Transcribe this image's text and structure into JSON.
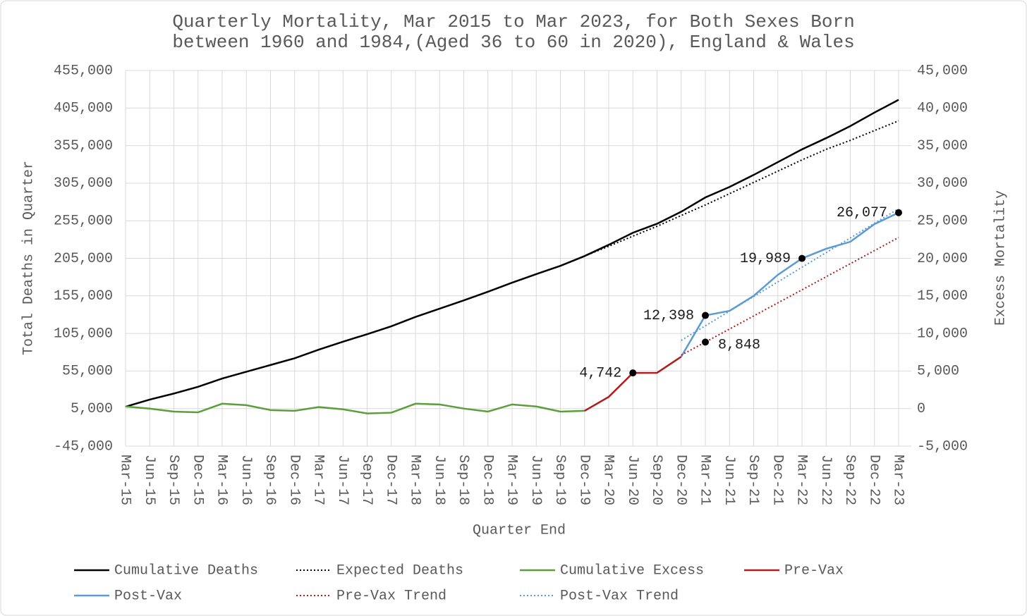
{
  "chart_data": {
    "type": "line",
    "title": [
      "Quarterly Mortality, Mar 2015 to Mar 2023, for Both Sexes Born",
      "between 1960 and 1984,(Aged 36 to 60 in 2020), England & Wales"
    ],
    "xlabel": "Quarter End",
    "ylabel": "Total Deaths in Quarter",
    "y2label": "Excess Mortality",
    "categories": [
      "Mar-15",
      "Jun-15",
      "Sep-15",
      "Dec-15",
      "Mar-16",
      "Jun-16",
      "Sep-16",
      "Dec-16",
      "Mar-17",
      "Jun-17",
      "Sep-17",
      "Dec-17",
      "Mar-18",
      "Jun-18",
      "Sep-18",
      "Dec-18",
      "Mar-19",
      "Jun-19",
      "Sep-19",
      "Dec-19",
      "Mar-20",
      "Jun-20",
      "Sep-20",
      "Dec-20",
      "Mar-21",
      "Jun-21",
      "Sep-21",
      "Dec-21",
      "Mar-22",
      "Jun-22",
      "Sep-22",
      "Dec-22",
      "Mar-23"
    ],
    "ylim": [
      -45000,
      455000
    ],
    "yticks": [
      {
        "value": -45000,
        "label": "-45,000"
      },
      {
        "value": 5000,
        "label": "5,000"
      },
      {
        "value": 55000,
        "label": "55,000"
      },
      {
        "value": 105000,
        "label": "105,000"
      },
      {
        "value": 155000,
        "label": "155,000"
      },
      {
        "value": 205000,
        "label": "205,000"
      },
      {
        "value": 255000,
        "label": "255,000"
      },
      {
        "value": 305000,
        "label": "305,000"
      },
      {
        "value": 355000,
        "label": "355,000"
      },
      {
        "value": 405000,
        "label": "405,000"
      },
      {
        "value": 455000,
        "label": "455,000"
      }
    ],
    "y2lim": [
      -5000,
      45000
    ],
    "y2ticks": [
      {
        "value": -5000,
        "label": "-5,000"
      },
      0,
      {
        "value": 5000,
        "label": "5,000"
      },
      {
        "value": 10000,
        "label": "10,000"
      },
      {
        "value": 15000,
        "label": "15,000"
      },
      {
        "value": 20000,
        "label": "20,000"
      },
      {
        "value": 25000,
        "label": "25,000"
      },
      {
        "value": 30000,
        "label": "30,000"
      },
      {
        "value": 35000,
        "label": "35,000"
      },
      {
        "value": 40000,
        "label": "40,000"
      },
      {
        "value": 45000,
        "label": "45,000"
      }
    ],
    "grid": true,
    "series": [
      {
        "name": "Cumulative Deaths",
        "color": "#000000",
        "dash": false,
        "axis": "y",
        "values": [
          7500,
          17000,
          25000,
          34000,
          45000,
          54000,
          63000,
          72000,
          83500,
          94000,
          104000,
          114500,
          127000,
          138000,
          149000,
          160500,
          172600,
          184000,
          195000,
          208000,
          223000,
          239000,
          251000,
          267000,
          286000,
          300000,
          316000,
          333000,
          350000,
          365000,
          381000,
          399000,
          416000
        ]
      },
      {
        "name": "Expected Deaths",
        "color": "#000000",
        "dash": true,
        "axis": "y",
        "values": [
          7500,
          17000,
          25000,
          34000,
          45000,
          54000,
          63000,
          72000,
          83500,
          94000,
          104000,
          114500,
          127000,
          138000,
          149000,
          160500,
          172600,
          184000,
          195000,
          208000,
          221000,
          234500,
          247600,
          262000,
          276000,
          291000,
          306000,
          321000,
          336000,
          350000,
          362000,
          375000,
          388000
        ]
      },
      {
        "name": "Cumulative Excess",
        "color": "#5b9e3a",
        "dash": false,
        "axis": "y2",
        "values": [
          280,
          0,
          -400,
          -500,
          650,
          450,
          -200,
          -300,
          200,
          -100,
          -650,
          -550,
          650,
          550,
          0,
          -400,
          550,
          280,
          -400,
          -300,
          null,
          null,
          null,
          null,
          null,
          null,
          null,
          null,
          null,
          null,
          null,
          null,
          null
        ]
      },
      {
        "name": "Pre-Vax",
        "color": "#b01c1c",
        "dash": false,
        "axis": "y2",
        "values": [
          null,
          null,
          null,
          null,
          null,
          null,
          null,
          null,
          null,
          null,
          null,
          null,
          null,
          null,
          null,
          null,
          null,
          null,
          null,
          -300,
          1560,
          4742,
          4760,
          6900,
          null,
          null,
          null,
          null,
          null,
          null,
          null,
          null,
          null
        ]
      },
      {
        "name": "Post-Vax",
        "color": "#5b9bd5",
        "dash": false,
        "axis": "y2",
        "values": [
          null,
          null,
          null,
          null,
          null,
          null,
          null,
          null,
          null,
          null,
          null,
          null,
          null,
          null,
          null,
          null,
          null,
          null,
          null,
          null,
          null,
          null,
          null,
          6900,
          12398,
          13000,
          15000,
          17800,
          19989,
          21270,
          22200,
          24550,
          26077
        ]
      },
      {
        "name": "Pre-Vax Trend",
        "color": "#b01c1c",
        "dash": true,
        "axis": "y2",
        "values": [
          null,
          null,
          null,
          null,
          null,
          null,
          null,
          null,
          null,
          null,
          null,
          null,
          null,
          null,
          null,
          null,
          null,
          null,
          null,
          null,
          null,
          null,
          null,
          7108,
          8848,
          10588,
          12328,
          14068,
          15808,
          17548,
          19288,
          21028,
          22768
        ]
      },
      {
        "name": "Post-Vax Trend",
        "color": "#5b9bd5",
        "dash": true,
        "axis": "y2",
        "values": [
          null,
          null,
          null,
          null,
          null,
          null,
          null,
          null,
          null,
          null,
          null,
          null,
          null,
          null,
          null,
          null,
          null,
          null,
          null,
          null,
          null,
          null,
          null,
          9070,
          11018,
          12966,
          14914,
          16862,
          18810,
          20758,
          22706,
          24654,
          26602
        ]
      }
    ],
    "markers": [
      {
        "x": "Jun-20",
        "value": 4742,
        "label": "4,742",
        "side": "left"
      },
      {
        "x": "Mar-21",
        "value": 12398,
        "label": "12,398",
        "side": "left"
      },
      {
        "x": "Mar-21",
        "value": 8848,
        "label": "8,848",
        "side": "right"
      },
      {
        "x": "Mar-22",
        "value": 19989,
        "label": "19,989",
        "side": "left"
      },
      {
        "x": "Mar-23",
        "value": 26077,
        "label": "26,077",
        "side": "left"
      }
    ]
  }
}
